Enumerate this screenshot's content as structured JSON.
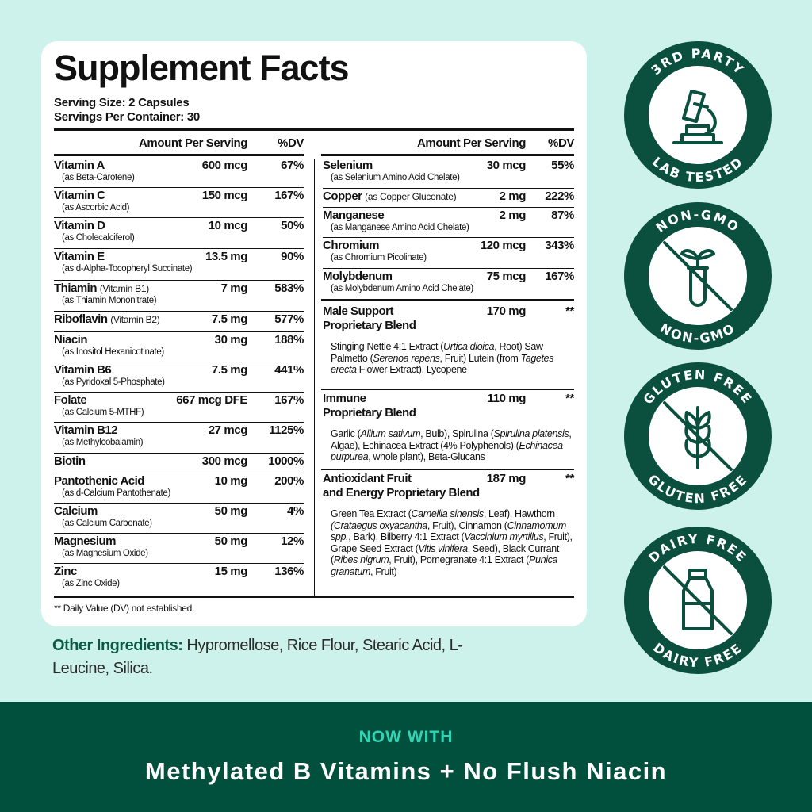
{
  "title": "Supplement Facts",
  "serving_size": "Serving Size: 2 Capsules",
  "servings_per_container": "Servings Per Container: 30",
  "table_header": {
    "amount": "Amount Per Serving",
    "dv": "%DV"
  },
  "left_rows": [
    {
      "name": "Vitamin A",
      "source": "(as Beta-Carotene)",
      "amount": "600 mcg",
      "dv": "67%"
    },
    {
      "name": "Vitamin C",
      "source": "(as Ascorbic Acid)",
      "amount": "150 mcg",
      "dv": "167%"
    },
    {
      "name": "Vitamin D",
      "source": "(as Cholecalciferol)",
      "amount": "10 mcg",
      "dv": "50%"
    },
    {
      "name": "Vitamin E",
      "source": "(as d-Alpha-Tocopheryl Succinate)",
      "amount": "13.5 mg",
      "dv": "90%"
    },
    {
      "name": "Thiamin",
      "qualifier": "(Vitamin B1)",
      "source": "(as Thiamin Mononitrate)",
      "amount": "7 mg",
      "dv": "583%"
    },
    {
      "name": "Riboflavin",
      "qualifier": "(Vitamin B2)",
      "amount": "7.5 mg",
      "dv": "577%"
    },
    {
      "name": "Niacin",
      "source": "(as Inositol Hexanicotinate)",
      "amount": "30 mg",
      "dv": "188%"
    },
    {
      "name": "Vitamin B6",
      "source": "(as Pyridoxal 5-Phosphate)",
      "amount": "7.5 mg",
      "dv": "441%"
    },
    {
      "name": "Folate",
      "source": "(as Calcium 5-MTHF)",
      "amount": "667 mcg DFE",
      "dv": "167%"
    },
    {
      "name": "Vitamin B12",
      "source": "(as Methylcobalamin)",
      "amount": "27 mcg",
      "dv": "1125%"
    },
    {
      "name": "Biotin",
      "amount": "300 mcg",
      "dv": "1000%"
    },
    {
      "name": "Pantothenic Acid",
      "source": "(as d-Calcium Pantothenate)",
      "amount": "10 mg",
      "dv": "200%"
    },
    {
      "name": "Calcium",
      "source": "(as Calcium Carbonate)",
      "amount": "50 mg",
      "dv": "4%"
    },
    {
      "name": "Magnesium",
      "source": "(as Magnesium Oxide)",
      "amount": "50 mg",
      "dv": "12%"
    },
    {
      "name": "Zinc",
      "source": "(as Zinc Oxide)",
      "amount": "15 mg",
      "dv": "136%"
    }
  ],
  "right_rows": [
    {
      "name": "Selenium",
      "source": "(as Selenium Amino Acid Chelate)",
      "amount": "30 mcg",
      "dv": "55%"
    },
    {
      "name": "Copper",
      "qualifier": "(as Copper Gluconate)",
      "amount": "2 mg",
      "dv": "222%"
    },
    {
      "name": "Manganese",
      "source": "(as Manganese Amino Acid Chelate)",
      "amount": "2 mg",
      "dv": "87%"
    },
    {
      "name": "Chromium",
      "source": "(as Chromium Picolinate)",
      "amount": "120 mcg",
      "dv": "343%"
    },
    {
      "name": "Molybdenum",
      "source": "(as Molybdenum Amino Acid Chelate)",
      "amount": "75 mcg",
      "dv": "167%"
    }
  ],
  "blends": [
    {
      "name": [
        "Male Support",
        "Proprietary Blend"
      ],
      "amount": "170 mg",
      "dv": "**",
      "description": [
        "Stinging Nettle 4:1 Extract (",
        "Urtica dioica",
        ", Root) Saw Palmetto (",
        "Serenoa repens",
        ", Fruit) Lutein (from ",
        "Tagetes erecta",
        " Flower Extract), Lycopene"
      ]
    },
    {
      "name": [
        "Immune",
        "Proprietary Blend"
      ],
      "amount": "110 mg",
      "dv": "**",
      "description": [
        "Garlic (",
        "Allium sativum",
        ", Bulb), Spirulina (",
        "Spirulina platensis",
        ", Algae), Echinacea Extract (4% Polyphenols) (",
        "Echinacea purpurea",
        ", whole plant), Beta-Glucans"
      ]
    },
    {
      "name": [
        "Antioxidant Fruit",
        "and Energy Proprietary Blend"
      ],
      "amount": "187 mg",
      "dv": "**",
      "description": [
        "Green Tea Extract (",
        "Camellia sinensis",
        ", Leaf), Hawthorn ",
        "(Crataegus oxyacantha",
        ", Fruit), Cinnamon (",
        "Cinnamomum spp.",
        ", Bark), Bilberry 4:1 Extract (",
        "Vaccinium myrtillus",
        ", Fruit), Grape Seed Extract (",
        "Vitis vinifera",
        ", Seed), Black Currant (",
        "Ribes nigrum",
        ", Fruit), Pomegranate 4:1 Extract (",
        "Punica granatum",
        ", Fruit)"
      ]
    }
  ],
  "footnote": "** Daily Value (DV) not established.",
  "other_ingredients": {
    "label": "Other Ingredients:",
    "text": "Hypromellose, Rice Flour, Stearic Acid, L-Leucine, Silica."
  },
  "badges": [
    {
      "top": "3RD PARTY",
      "bottom": "LAB TESTED"
    },
    {
      "top": "NON-GMO",
      "bottom": "NON-GMO"
    },
    {
      "top": "GLUTEN FREE",
      "bottom": "GLUTEN FREE"
    },
    {
      "top": "DAIRY FREE",
      "bottom": "DAIRY FREE"
    }
  ],
  "banner": {
    "kicker": "NOW WITH",
    "headline": "Methylated B Vitamins + No Flush Niacin"
  }
}
